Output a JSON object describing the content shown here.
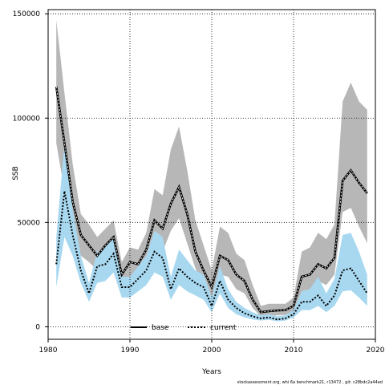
{
  "chart_data": {
    "type": "line",
    "title": "",
    "xlabel": "Years",
    "ylabel": "SSB",
    "xlim": [
      1980,
      2020
    ],
    "ylim": [
      -6000,
      152000
    ],
    "xticks": [
      1980,
      1990,
      2000,
      2010,
      2020
    ],
    "yticks": [
      0,
      50000,
      100000,
      150000
    ],
    "ytick_labels": [
      "0",
      "50000",
      "100000",
      "150000"
    ],
    "grid": true,
    "legend_position": "bottom-center",
    "x": [
      1981,
      1982,
      1983,
      1984,
      1985,
      1986,
      1987,
      1988,
      1989,
      1990,
      1991,
      1992,
      1993,
      1994,
      1995,
      1996,
      1997,
      1998,
      1999,
      2000,
      2001,
      2002,
      2003,
      2004,
      2005,
      2006,
      2007,
      2008,
      2009,
      2010,
      2011,
      2012,
      2013,
      2014,
      2015,
      2016,
      2017,
      2018,
      2019
    ],
    "series": [
      {
        "name": "base",
        "color": "#000000",
        "band_color": "#b7b7b7",
        "values": [
          115000,
          88000,
          60000,
          44000,
          39000,
          34000,
          39000,
          43000,
          25000,
          31000,
          30000,
          37000,
          51000,
          47000,
          59000,
          67000,
          54000,
          36000,
          27000,
          19000,
          34000,
          32000,
          25000,
          22000,
          13000,
          7000,
          7500,
          7800,
          8000,
          10000,
          24000,
          25000,
          30000,
          28000,
          33000,
          70000,
          75000,
          69000,
          64000
        ],
        "lower": [
          88000,
          65000,
          45000,
          34000,
          31000,
          27000,
          31000,
          34000,
          17000,
          23000,
          23000,
          28000,
          40000,
          36000,
          46000,
          52000,
          40000,
          28000,
          20000,
          13000,
          25000,
          24000,
          18000,
          16000,
          9000,
          5000,
          5200,
          5500,
          5600,
          7500,
          17000,
          18000,
          22000,
          20000,
          25000,
          55000,
          57000,
          48000,
          40000
        ],
        "upper": [
          147000,
          112000,
          78000,
          54000,
          49000,
          43000,
          47000,
          51000,
          31000,
          38000,
          37000,
          45000,
          66000,
          63000,
          85000,
          96000,
          75000,
          51000,
          39000,
          27000,
          48000,
          45000,
          35000,
          32000,
          20000,
          10000,
          11000,
          11000,
          11000,
          14000,
          36000,
          38000,
          45000,
          42000,
          49000,
          108000,
          117000,
          108000,
          104000
        ]
      },
      {
        "name": "current",
        "color": "#000000",
        "band_color": "#a8d8f0",
        "values": [
          30000,
          65000,
          44000,
          27000,
          16000,
          29000,
          30000,
          35000,
          19000,
          19000,
          23000,
          27000,
          36000,
          33000,
          18000,
          28000,
          24000,
          21000,
          19000,
          10000,
          22000,
          13000,
          9000,
          6500,
          5000,
          4000,
          4500,
          3500,
          4000,
          6000,
          12000,
          12000,
          15000,
          10000,
          15000,
          27000,
          28000,
          22000,
          16000
        ],
        "lower": [
          19000,
          43000,
          34000,
          21000,
          12000,
          21000,
          22000,
          26000,
          14000,
          14000,
          17000,
          20000,
          26000,
          24000,
          13000,
          20000,
          17000,
          15000,
          13000,
          7000,
          16000,
          9000,
          6000,
          4500,
          3500,
          3000,
          3300,
          2600,
          3000,
          4500,
          8000,
          8000,
          10000,
          7000,
          10000,
          17000,
          17500,
          14000,
          10000
        ],
        "upper": [
          43000,
          88000,
          56000,
          34000,
          21000,
          36000,
          38000,
          44000,
          24000,
          24000,
          29000,
          34000,
          46000,
          43000,
          24000,
          37000,
          32000,
          27000,
          25000,
          14000,
          29000,
          18000,
          12000,
          9000,
          7000,
          5500,
          6000,
          5000,
          5500,
          8000,
          17000,
          18000,
          24000,
          16000,
          23000,
          44000,
          45000,
          36000,
          25000
        ]
      }
    ]
  },
  "footer_text": "stockassessment.org,  whi  6a  benchmark21,  r13472  ,  git:  c28bdc2a44ad"
}
